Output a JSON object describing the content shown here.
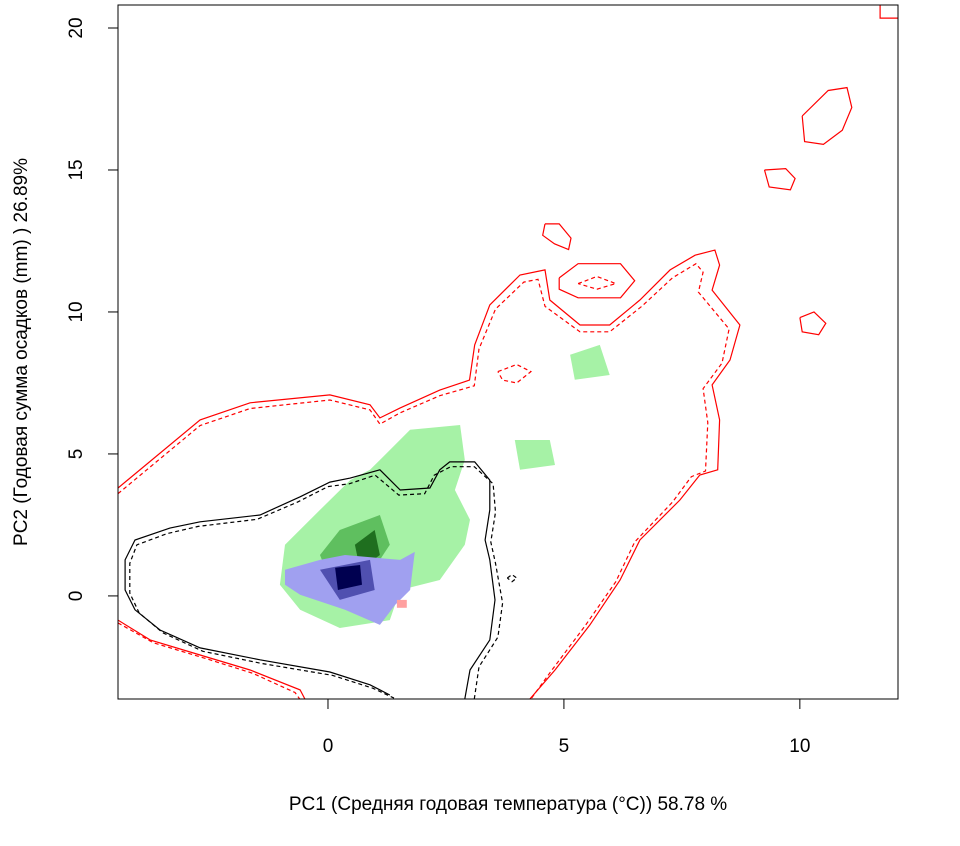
{
  "chart_data": {
    "type": "contour",
    "xlabel": "PC1 (Средняя годовая температура (°C)) 58.78 %",
    "ylabel": "PC2 (Годовая сумма осадков  (mm) ) 26.89%",
    "xlim": [
      -4.45,
      12.08
    ],
    "ylim": [
      -3.63,
      20.81
    ],
    "xticks": [
      0,
      5,
      10
    ],
    "yticks": [
      0,
      5,
      10,
      15,
      20
    ],
    "series": [
      {
        "color": "#a6f2a6",
        "fill": true,
        "x": [
          1.74,
          2.8,
          2.9,
          2.69,
          3.01,
          2.9,
          2.37,
          1.53,
          1.31,
          0.25,
          -0.59,
          -1.02,
          -0.91,
          -0.17,
          0.47,
          0.89,
          1.42
        ],
        "y": [
          5.85,
          6.02,
          4.79,
          3.73,
          2.68,
          1.8,
          0.56,
          0.21,
          -0.85,
          -1.13,
          -0.49,
          0.39,
          1.8,
          3.03,
          4.08,
          4.44,
          5.32
        ]
      },
      {
        "color": "#a6f2a6",
        "fill": true,
        "x": [
          3.96,
          4.7,
          4.81,
          4.07
        ],
        "y": [
          5.49,
          5.49,
          4.61,
          4.44
        ]
      },
      {
        "color": "#a6f2a6",
        "fill": true,
        "x": [
          5.13,
          5.76,
          5.97,
          5.23
        ],
        "y": [
          8.49,
          8.84,
          7.78,
          7.61
        ]
      },
      {
        "color": "#5fbf5f",
        "fill": true,
        "x": [
          0.25,
          1.1,
          1.31,
          0.89,
          0.04,
          -0.17
        ],
        "y": [
          2.32,
          2.85,
          1.8,
          0.74,
          0.56,
          1.44
        ]
      },
      {
        "color": "#1f6f1f",
        "fill": true,
        "x": [
          0.57,
          0.99,
          1.1,
          0.68
        ],
        "y": [
          1.8,
          2.32,
          1.44,
          0.92
        ]
      },
      {
        "color": "#a0a0f0",
        "fill": true,
        "x": [
          -0.91,
          -0.17,
          0.36,
          1.53,
          1.84,
          1.74,
          1.42,
          1.1,
          0.36,
          -0.59,
          -0.91
        ],
        "y": [
          0.92,
          1.27,
          1.44,
          1.27,
          1.55,
          0.21,
          -0.32,
          -1.02,
          -0.49,
          0.04,
          0.39
        ]
      },
      {
        "color": "#5050b0",
        "fill": true,
        "x": [
          -0.17,
          0.89,
          0.99,
          0.25
        ],
        "y": [
          0.92,
          1.27,
          0.21,
          -0.14
        ]
      },
      {
        "color": "#000050",
        "fill": true,
        "x": [
          0.15,
          0.68,
          0.72,
          0.21
        ],
        "y": [
          0.99,
          1.09,
          0.39,
          0.21
        ]
      },
      {
        "color": "#ffa0a0",
        "fill": true,
        "x": [
          1.46,
          1.67,
          1.67,
          1.46
        ],
        "y": [
          -0.14,
          -0.14,
          -0.42,
          -0.42
        ]
      },
      {
        "color": "#ff0000",
        "fill": false,
        "dash": false,
        "x": [
          -4.45,
          -2.71,
          -1.65,
          0.04,
          0.89,
          1.1,
          1.53,
          2.37,
          3.0,
          3.11,
          3.43,
          4.07,
          4.6,
          4.7,
          5.34,
          5.97,
          6.61,
          7.25,
          7.78,
          8.2,
          8.3,
          8.14,
          8.73,
          8.52,
          8.14,
          8.3,
          8.26,
          7.88,
          7.46,
          6.61,
          6.19,
          5.55,
          4.81,
          4.28
        ],
        "y": [
          3.8,
          6.2,
          6.8,
          7.08,
          6.73,
          6.27,
          6.62,
          7.25,
          7.6,
          8.84,
          10.25,
          11.3,
          11.48,
          10.42,
          9.54,
          9.54,
          10.42,
          11.48,
          12.0,
          12.18,
          11.65,
          10.77,
          9.54,
          8.31,
          7.43,
          6.2,
          4.44,
          4.26,
          3.38,
          1.97,
          0.56,
          -1.02,
          -2.61,
          -3.63
        ]
      },
      {
        "color": "#ff0000",
        "fill": false,
        "dash": true,
        "x": [
          -4.45,
          -2.71,
          -1.65,
          0.04,
          0.89,
          1.1,
          1.53,
          2.37,
          3.1,
          3.2,
          3.55,
          4.15,
          4.45,
          4.6,
          5.34,
          5.97,
          6.65,
          7.3,
          7.8,
          7.95,
          7.85,
          8.5,
          8.35,
          7.95,
          8.05,
          8.0,
          7.7,
          7.3,
          6.5,
          6.1,
          5.45,
          4.75,
          4.3
        ],
        "y": [
          3.6,
          6.0,
          6.6,
          6.9,
          6.55,
          6.05,
          6.45,
          7.05,
          7.4,
          8.7,
          10.1,
          11.05,
          11.15,
          10.2,
          9.3,
          9.3,
          10.2,
          11.2,
          11.7,
          11.4,
          10.7,
          9.4,
          8.2,
          7.3,
          6.1,
          4.4,
          4.2,
          3.3,
          1.9,
          0.5,
          -1.05,
          -2.6,
          -3.63
        ]
      },
      {
        "color": "#ff0000",
        "fill": false,
        "dash": false,
        "x": [
          -4.45,
          -3.77,
          -2.71,
          -1.65,
          -0.59,
          -0.49
        ],
        "y": [
          -0.85,
          -1.55,
          -2.08,
          -2.61,
          -3.31,
          -3.63
        ]
      },
      {
        "color": "#ff0000",
        "fill": false,
        "dash": true,
        "x": [
          -4.45,
          -3.7,
          -2.6,
          -1.6,
          -0.7,
          -0.6
        ],
        "y": [
          -0.95,
          -1.65,
          -2.2,
          -2.72,
          -3.4,
          -3.63
        ]
      },
      {
        "color": "#ff0000",
        "fill": false,
        "dash": false,
        "x": [
          4.6,
          4.9,
          5.15,
          5.1,
          4.8,
          4.55,
          4.6
        ],
        "y": [
          13.1,
          13.1,
          12.6,
          12.2,
          12.4,
          12.7,
          13.1
        ]
      },
      {
        "color": "#ff0000",
        "fill": false,
        "dash": false,
        "x": [
          4.9,
          5.3,
          6.2,
          6.5,
          6.2,
          5.3,
          4.9,
          4.9
        ],
        "y": [
          11.2,
          11.7,
          11.7,
          11.1,
          10.5,
          10.5,
          10.8,
          11.2
        ]
      },
      {
        "color": "#ff0000",
        "fill": false,
        "dash": true,
        "x": [
          5.3,
          5.7,
          6.1,
          5.7,
          5.3
        ],
        "y": [
          11.0,
          11.25,
          11.0,
          10.8,
          11.0
        ]
      },
      {
        "color": "#ff0000",
        "fill": false,
        "dash": false,
        "x": [
          9.25,
          9.7,
          9.9,
          9.8,
          9.35,
          9.25
        ],
        "y": [
          15.0,
          15.05,
          14.7,
          14.3,
          14.4,
          15.0
        ]
      },
      {
        "color": "#ff0000",
        "fill": false,
        "dash": false,
        "x": [
          10.0,
          10.3,
          10.55,
          10.4,
          10.05,
          10.0
        ],
        "y": [
          9.8,
          10.0,
          9.6,
          9.2,
          9.3,
          9.8
        ]
      },
      {
        "color": "#ff0000",
        "fill": false,
        "dash": false,
        "x": [
          10.05,
          10.6,
          11.0,
          11.1,
          10.9,
          10.5,
          10.1,
          10.05
        ],
        "y": [
          16.9,
          17.8,
          17.9,
          17.2,
          16.4,
          15.9,
          16.0,
          16.9
        ]
      },
      {
        "color": "#ff0000",
        "fill": false,
        "dash": true,
        "x": [
          3.6,
          4.0,
          4.3,
          4.0,
          3.7,
          3.6
        ],
        "y": [
          7.9,
          8.15,
          7.9,
          7.5,
          7.6,
          7.9
        ]
      },
      {
        "color": "#ff0000",
        "fill": false,
        "dash": false,
        "x": [
          11.7,
          11.7,
          12.08
        ],
        "y": [
          20.81,
          20.35,
          20.35
        ]
      },
      {
        "color": "#000000",
        "fill": false,
        "dash": false,
        "x": [
          2.9,
          3.01,
          3.43,
          3.54,
          3.43,
          3.33,
          3.43,
          3.43,
          3.11,
          2.58,
          2.37,
          2.16,
          1.53,
          1.1,
          0.47,
          0.04,
          -0.59,
          -1.44,
          -2.71,
          -3.35,
          -4.09,
          -4.3,
          -4.3,
          -4.09,
          -3.56,
          -2.71,
          -1.44,
          0.04,
          0.89,
          1.31
        ],
        "y": [
          -3.63,
          -2.61,
          -1.55,
          -0.14,
          1.27,
          1.97,
          3.03,
          4.08,
          4.72,
          4.72,
          4.44,
          3.8,
          3.73,
          4.44,
          4.15,
          4.01,
          3.49,
          2.85,
          2.61,
          2.39,
          1.97,
          1.27,
          0.21,
          -0.49,
          -1.2,
          -1.83,
          -2.25,
          -2.68,
          -3.13,
          -3.49
        ]
      },
      {
        "color": "#000000",
        "fill": false,
        "dash": true,
        "x": [
          3.1,
          3.2,
          3.6,
          3.7,
          3.55,
          3.45,
          3.55,
          3.5,
          3.1,
          2.6,
          2.25,
          2.05,
          1.5,
          1.0,
          0.45,
          0.0,
          -0.65,
          -1.5,
          -2.75,
          -3.4,
          -4.05,
          -4.2,
          -4.2,
          -4.0,
          -3.5,
          -2.65,
          -1.4,
          0.1,
          0.95,
          1.4
        ],
        "y": [
          -3.63,
          -2.5,
          -1.45,
          -0.25,
          1.15,
          1.9,
          2.95,
          3.95,
          4.55,
          4.55,
          4.25,
          3.6,
          3.55,
          4.25,
          3.95,
          3.85,
          3.3,
          2.7,
          2.45,
          2.2,
          1.8,
          1.15,
          0.1,
          -0.6,
          -1.3,
          -1.95,
          -2.38,
          -2.8,
          -3.25,
          -3.6
        ]
      },
      {
        "color": "#000000",
        "fill": false,
        "dash": true,
        "x": [
          3.8,
          3.9,
          4.0,
          3.9,
          3.8
        ],
        "y": [
          0.63,
          0.75,
          0.63,
          0.5,
          0.63
        ]
      }
    ]
  }
}
